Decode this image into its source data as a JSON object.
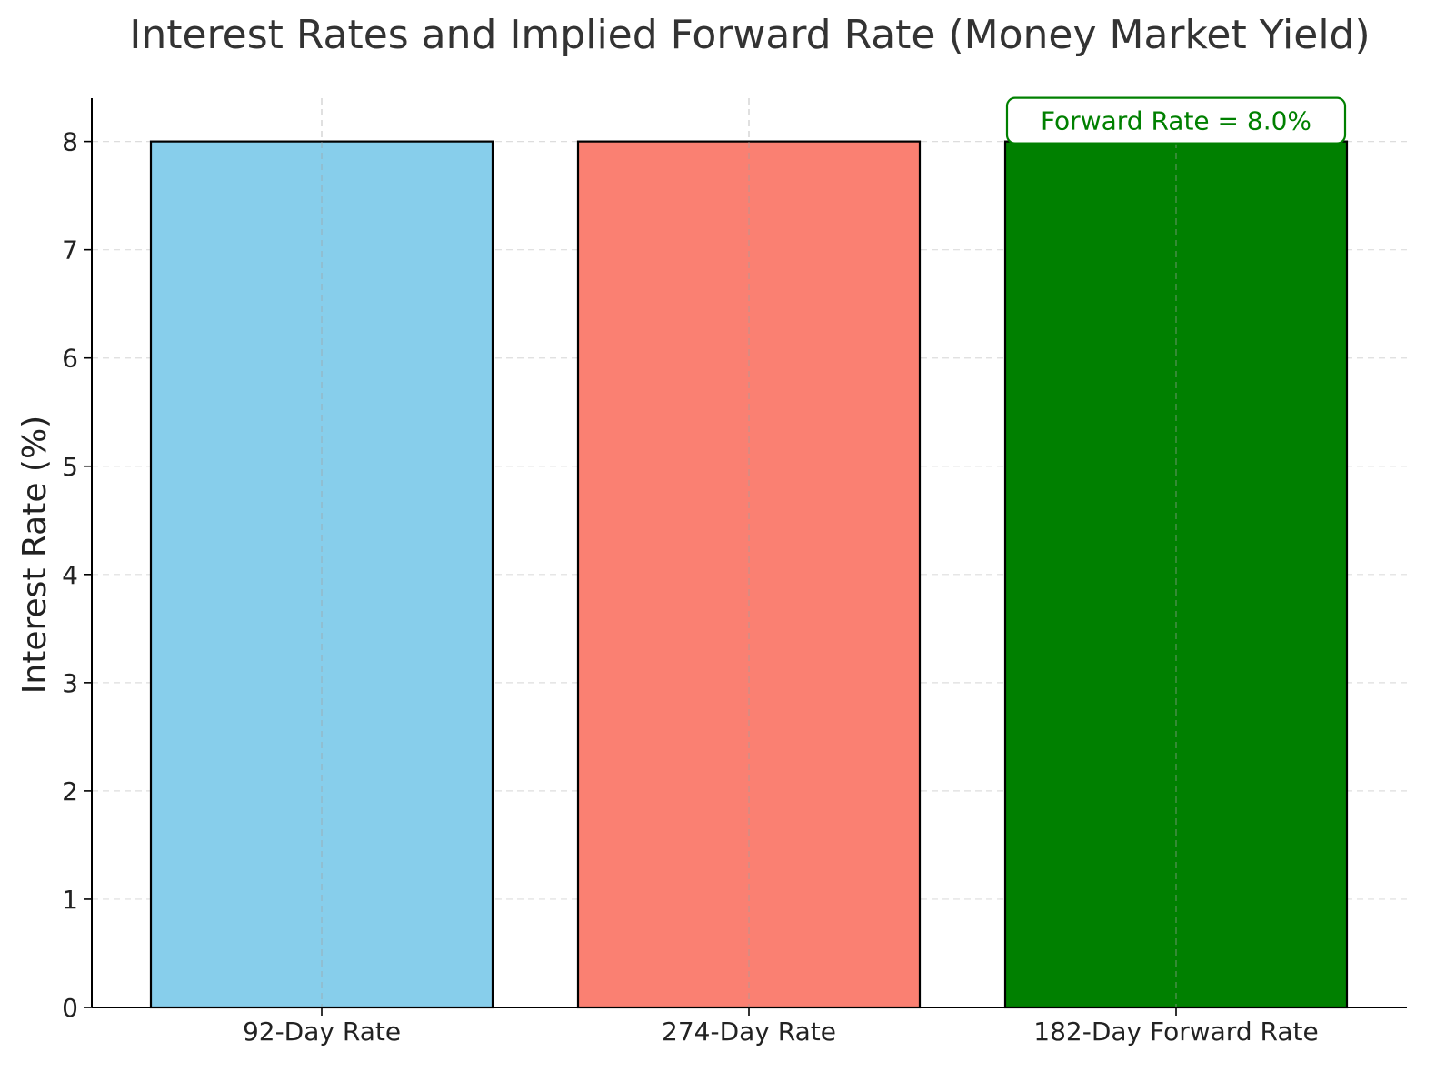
{
  "chart_data": {
    "type": "bar",
    "title": "Interest Rates and Implied Forward Rate (Money Market Yield)",
    "xlabel": "",
    "ylabel": "Interest Rate (%)",
    "categories": [
      "92-Day Rate",
      "274-Day Rate",
      "182-Day Forward Rate"
    ],
    "values": [
      8.0,
      8.0,
      8.0
    ],
    "colors": [
      "#87CEEB",
      "#FA8072",
      "#008000"
    ],
    "ylim": [
      0,
      8.4
    ],
    "yticks": [
      "0",
      "1",
      "2",
      "3",
      "4",
      "5",
      "6",
      "7",
      "8"
    ],
    "grid": true,
    "annotation": {
      "text": "Forward Rate = 8.0%",
      "category_index": 2,
      "value": 8.0,
      "color": "#008000"
    }
  }
}
